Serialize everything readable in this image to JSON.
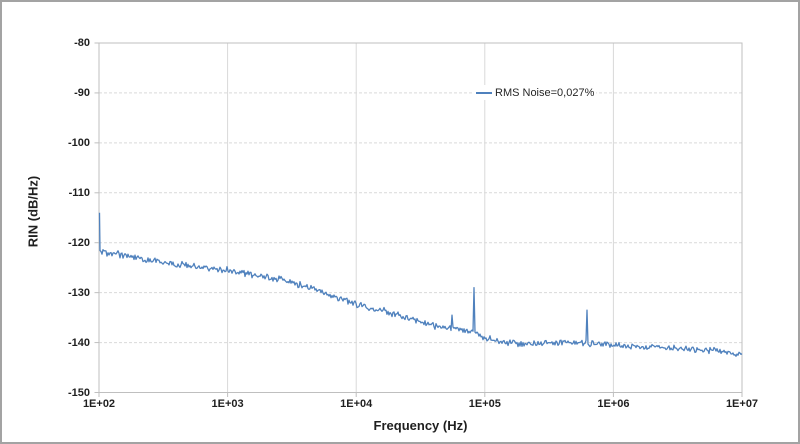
{
  "frame": {
    "border_color": "#A3A3A3",
    "background": "#FFFFFF"
  },
  "colors": {
    "series_line": "#4F81BD",
    "gridline": "#D9D9D9",
    "axis_border": "#BFBFBF",
    "label_text": "#1F1F1F"
  },
  "legend": {
    "label": "RMS Noise=0,027%"
  },
  "chart_data": {
    "type": "line",
    "title": "",
    "xlabel": "Frequency (Hz)",
    "ylabel": "RIN (dB/Hz)",
    "x_scale": "log10",
    "xlim_log10": [
      2,
      7
    ],
    "ylim": [
      -150,
      -80
    ],
    "grid": true,
    "legend_position": "inside-top-right",
    "x_tick_labels": [
      "1E+02",
      "1E+03",
      "1E+04",
      "1E+05",
      "1E+06",
      "1E+07"
    ],
    "x_tick_log10": [
      2,
      3,
      4,
      5,
      6,
      7
    ],
    "y_tick_labels": [
      "-80",
      "-90",
      "-100",
      "-110",
      "-120",
      "-130",
      "-140",
      "-150"
    ],
    "y_tick_values": [
      -80,
      -90,
      -100,
      -110,
      -120,
      -130,
      -140,
      -150
    ],
    "series": [
      {
        "name": "RMS Noise=0,027%",
        "color": "#4F81BD",
        "trend_log10f_db": [
          [
            2.0,
            -121.9
          ],
          [
            2.2,
            -122.5
          ],
          [
            2.4,
            -123.5
          ],
          [
            2.6,
            -124.3
          ],
          [
            2.8,
            -124.9
          ],
          [
            3.0,
            -125.5
          ],
          [
            3.2,
            -126.4
          ],
          [
            3.4,
            -127.3
          ],
          [
            3.6,
            -128.7
          ],
          [
            3.8,
            -130.4
          ],
          [
            4.0,
            -132.3
          ],
          [
            4.2,
            -133.6
          ],
          [
            4.4,
            -135.0
          ],
          [
            4.6,
            -136.6
          ],
          [
            4.8,
            -137.4
          ],
          [
            4.9,
            -138.0
          ],
          [
            5.0,
            -138.9
          ],
          [
            5.1,
            -139.8
          ],
          [
            5.3,
            -140.4
          ],
          [
            5.45,
            -139.9
          ],
          [
            5.6,
            -140.0
          ],
          [
            5.8,
            -140.1
          ],
          [
            6.0,
            -140.5
          ],
          [
            6.3,
            -140.9
          ],
          [
            6.6,
            -141.2
          ],
          [
            6.8,
            -141.6
          ],
          [
            7.0,
            -142.3
          ]
        ],
        "start_spike_db": -114.0,
        "spikes": [
          {
            "log10f": 4.745,
            "peak_db": -134.5
          },
          {
            "log10f": 4.915,
            "peak_db": -129.0
          },
          {
            "log10f": 5.795,
            "peak_db": -133.5
          }
        ],
        "noise_db": 0.75,
        "noise_seed": 987654321
      }
    ]
  }
}
